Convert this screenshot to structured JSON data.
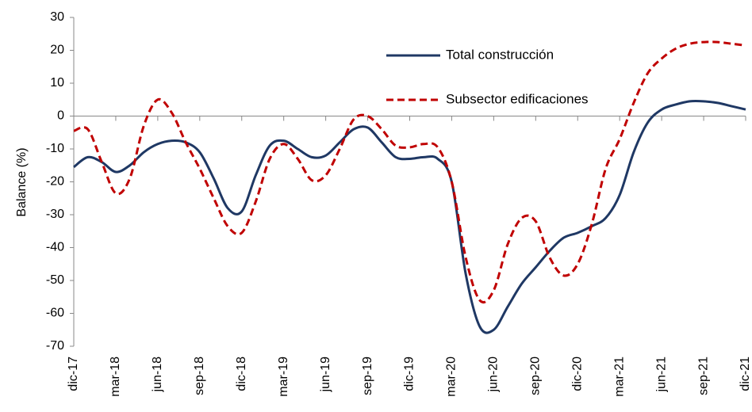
{
  "chart_data": {
    "type": "line",
    "y_label": "Balance (%)",
    "categories": [
      "dic-17",
      null,
      null,
      "mar-18",
      null,
      null,
      "jun-18",
      null,
      null,
      "sep-18",
      null,
      null,
      "dic-18",
      null,
      null,
      "mar-19",
      null,
      null,
      "jun-19",
      null,
      null,
      "sep-19",
      null,
      null,
      "dic-19",
      null,
      null,
      "mar-20",
      null,
      null,
      "jun-20",
      null,
      null,
      "sep-20",
      null,
      null,
      "dic-20",
      null,
      null,
      "mar-21",
      null,
      null,
      "jun-21",
      null,
      null,
      "sep-21",
      null,
      null,
      "dic-21"
    ],
    "series": [
      {
        "name": "Total construcción",
        "color": "#1f3864",
        "dash": false,
        "values": [
          -15.5,
          -12.5,
          -14,
          -17,
          -15,
          -11,
          -8.5,
          -7.5,
          -8,
          -11,
          -19,
          -28,
          -29,
          -18,
          -9,
          -7.5,
          -10,
          -12.5,
          -12,
          -8,
          -4,
          -3.5,
          -8,
          -12.5,
          -13,
          -12.5,
          -13,
          -20,
          -48,
          -64,
          -65,
          -58,
          -51,
          -46,
          -41,
          -37,
          -35.5,
          -33.5,
          -31,
          -24,
          -11,
          -2,
          2,
          3.5,
          4.5,
          4.5,
          4,
          3,
          2
        ]
      },
      {
        "name": "Subsector edificaciones",
        "color": "#c00000",
        "dash": true,
        "values": [
          -4.5,
          -4,
          -14,
          -23.5,
          -19,
          -3,
          5,
          1,
          -8,
          -16,
          -25,
          -33.5,
          -35.5,
          -26,
          -13,
          -8.5,
          -13,
          -19.5,
          -18,
          -10,
          -1,
          0,
          -4,
          -9,
          -9.5,
          -8.5,
          -9.5,
          -20,
          -43,
          -56,
          -53,
          -39,
          -31,
          -32,
          -43,
          -48.5,
          -45,
          -33,
          -16,
          -7,
          4,
          13,
          17.5,
          20.5,
          22,
          22.5,
          22.5,
          22,
          21.5
        ]
      }
    ],
    "ylim": [
      -70,
      30
    ],
    "yticks": [
      -70,
      -60,
      -50,
      -40,
      -30,
      -20,
      -10,
      0,
      10,
      20,
      30
    ],
    "grid": false,
    "legend": "top-right"
  }
}
